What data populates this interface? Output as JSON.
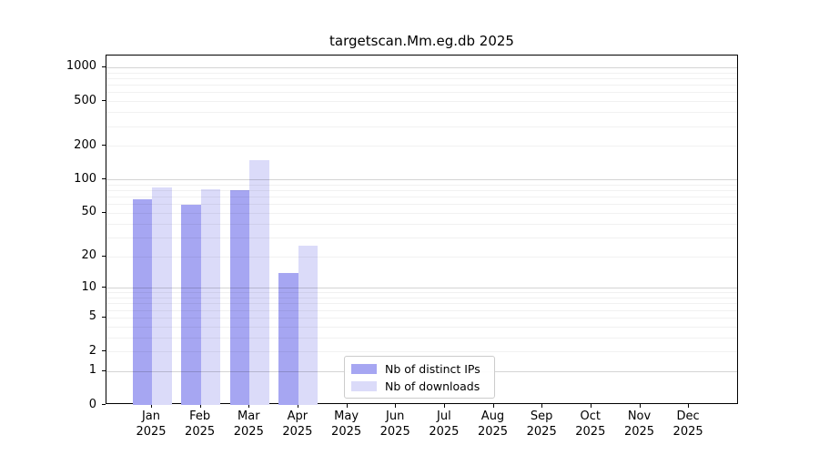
{
  "chart_data": {
    "type": "bar",
    "title": "targetscan.Mm.eg.db 2025",
    "categories": [
      "Jan",
      "Feb",
      "Mar",
      "Apr",
      "May",
      "Jun",
      "Jul",
      "Aug",
      "Sep",
      "Oct",
      "Nov",
      "Dec"
    ],
    "year_label": "2025",
    "series": [
      {
        "name": "Nb of distinct IPs",
        "color": "#a6a6f2",
        "values": [
          66,
          59,
          80,
          14,
          0,
          0,
          0,
          0,
          0,
          0,
          0,
          0
        ]
      },
      {
        "name": "Nb of downloads",
        "color": "#dbdbf9",
        "values": [
          84,
          82,
          149,
          25,
          0,
          0,
          0,
          0,
          0,
          0,
          0,
          0
        ]
      }
    ],
    "yscale": "log10(1+x)",
    "yticks": [
      0,
      1,
      2,
      5,
      10,
      20,
      50,
      100,
      200,
      500,
      1000
    ],
    "ylim": [
      0,
      1000
    ],
    "grid": "y",
    "legend_position": "bottom-center",
    "colors": {
      "axis": "#000000",
      "grid_major": "#cfcfcf",
      "grid_minor": "#ededed",
      "legend_border": "#cccccc",
      "background": "#ffffff"
    }
  }
}
